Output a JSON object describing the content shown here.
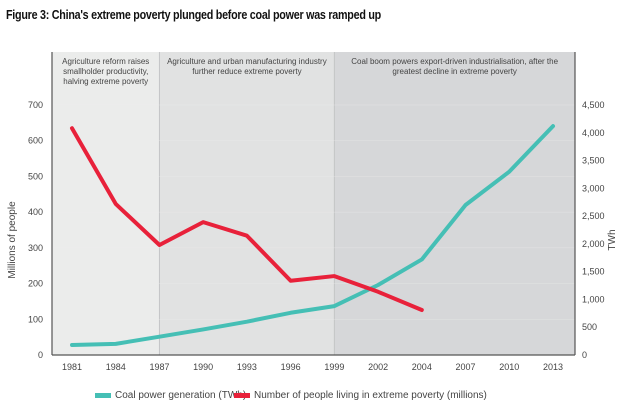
{
  "title": "Figure 3: China's extreme poverty plunged before coal power was ramped up",
  "chart_data": {
    "type": "line",
    "title": "Figure 3: China's extreme poverty plunged before coal power was ramped up",
    "categories": [
      "1981",
      "1984",
      "1987",
      "1990",
      "1993",
      "1996",
      "1999",
      "2002",
      "2004",
      "2007",
      "2010",
      "2013"
    ],
    "y_left": {
      "label": "Millions of people",
      "range": [
        0,
        700
      ],
      "ticks": [
        "0",
        "100",
        "200",
        "300",
        "400",
        "500",
        "600",
        "700"
      ]
    },
    "y_right": {
      "label": "TWh",
      "range": [
        0,
        4500
      ],
      "ticks": [
        "0",
        "500",
        "1,000",
        "1,500",
        "2,000",
        "2,500",
        "3,000",
        "3,500",
        "4,000",
        "4,500"
      ]
    },
    "grid": false,
    "legend_position": "bottom",
    "series": [
      {
        "name": "Coal power generation (TWh)",
        "axis": "right",
        "color": "#45bfb5",
        "values": [
          180,
          200,
          330,
          460,
          600,
          760,
          880,
          1260,
          1720,
          2700,
          3300,
          4120
        ]
      },
      {
        "name": "Number of people living in extreme poverty (millions)",
        "axis": "left",
        "color": "#e8213a",
        "values": [
          635,
          423,
          308,
          372,
          334,
          208,
          221,
          177,
          126,
          null,
          null,
          null
        ]
      }
    ],
    "periods": [
      {
        "from": "1981",
        "to": "1987",
        "text": "Agriculture reform raises smallholder productivity, halving extreme poverty",
        "color": "#ebeceb"
      },
      {
        "from": "1987",
        "to": "1999",
        "text": "Agriculture and urban manufacturing industry further reduce extreme poverty",
        "color": "#e1e2e2"
      },
      {
        "from": "1999",
        "to": "2013",
        "text": "Coal boom powers export-driven industrialisation, after the greatest decline in extreme poverty",
        "color": "#d6d7d9"
      }
    ]
  }
}
